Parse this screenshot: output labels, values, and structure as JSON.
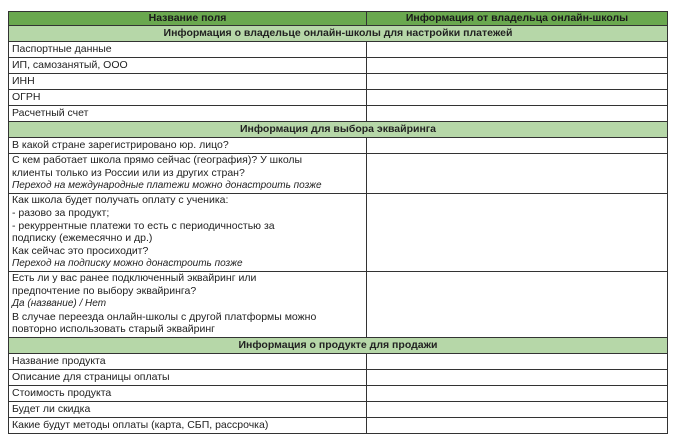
{
  "header": {
    "col1": "Название поля",
    "col2": "Информация от владельца онлайн-школы"
  },
  "colors": {
    "header_bg": "#6aa84f",
    "section_bg": "#b6d7a8"
  },
  "sections": [
    {
      "title": "Информация о владельце онлайн-школы для настройки платежей",
      "rows": [
        "Паспортные данные",
        "ИП, самозанятый, ООО",
        "ИНН",
        "ОГРН",
        "Расчетный счет"
      ]
    },
    {
      "title": "Информация для выбора эквайринга"
    },
    {
      "title": "Информация о продукте для продажи",
      "rows": [
        "Название продукта",
        "Описание для страницы оплаты",
        "Стоимость продукта",
        "Будет ли скидка",
        "Какие будут методы оплаты (карта, СБП, рассрочка)"
      ]
    }
  ],
  "acquiring": {
    "q1": "В какой стране зарегистрировано юр. лицо?",
    "q2": {
      "l1": "С кем работает школа прямо сейчас (география)? У школы",
      "l2": "клиенты только из России или из других стран?",
      "note": "Переход на международные платежи можно донастроить позже"
    },
    "q3": {
      "l1": "Как школа будет получать оплату с ученика:",
      "l2": "- разово за продукт;",
      "l3": "- рекуррентные платежи то есть с периодичностью за",
      "l4": "подписку (ежемесячно и др.)",
      "l5": "Как сейчас это просиходит?",
      "note": "Переход на подписку можно донастроить позже"
    },
    "q4": {
      "l1": "Есть ли у вас ранее подключенный эквайринг или",
      "l2": "предпочтение по выбору эквайринга?",
      "note": "Да (название) / Нет",
      "l3": "В случае переезда онлайн-школы с другой платформы можно",
      "l4": "повторно использовать старый эквайринг"
    }
  }
}
